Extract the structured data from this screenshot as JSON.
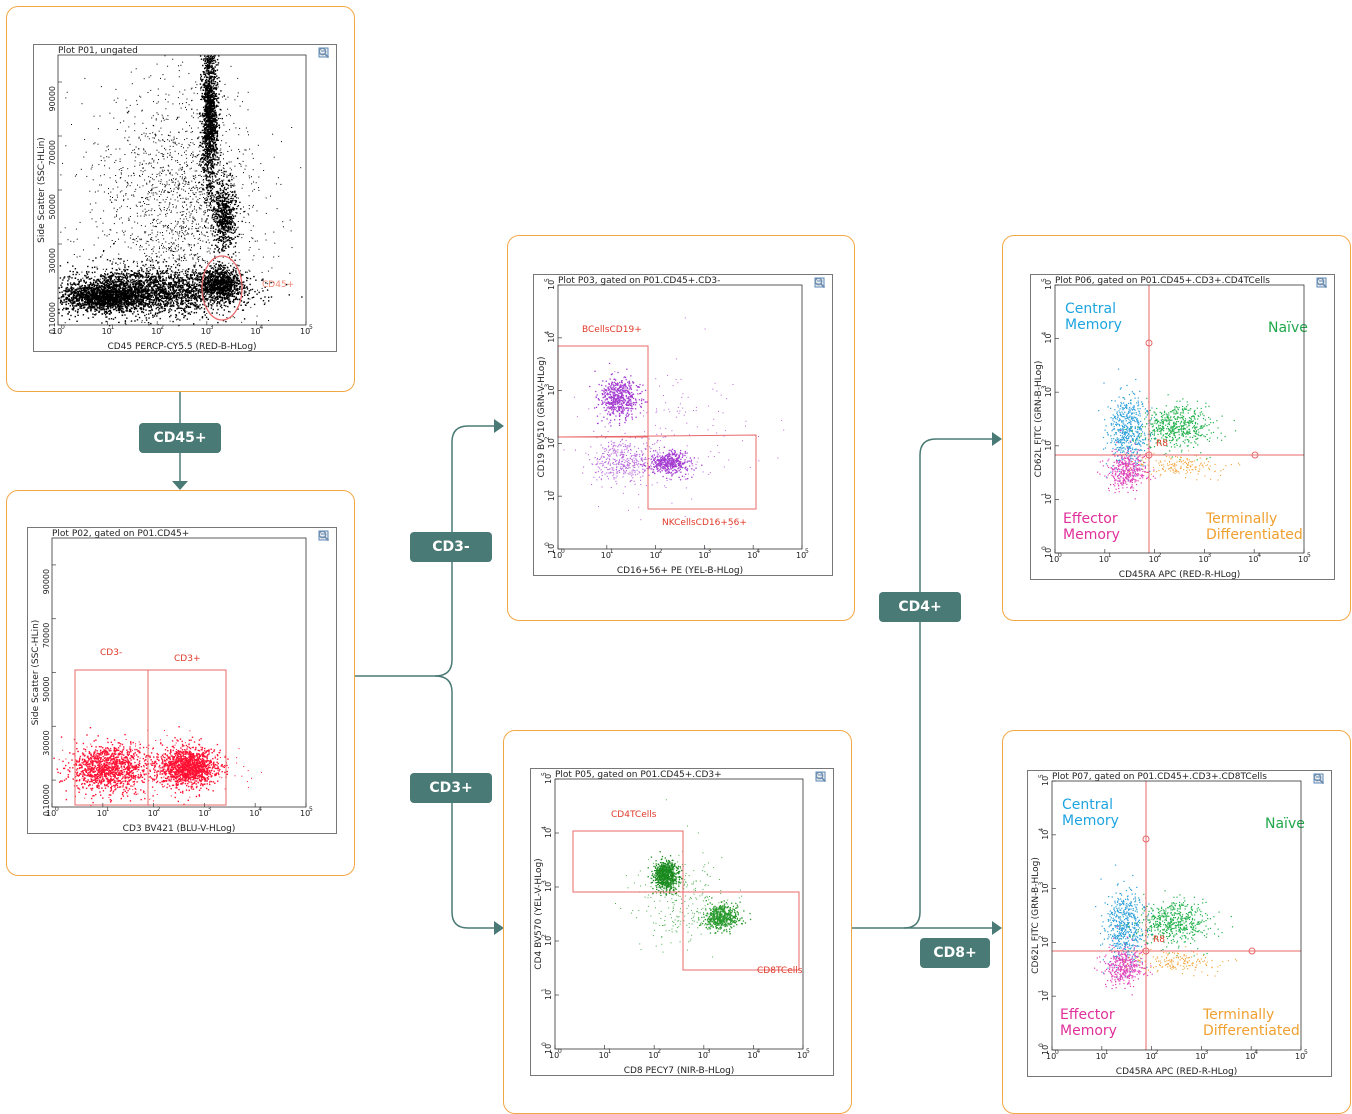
{
  "colors": {
    "card_border": "#f2a745",
    "connector": "#4a7a75",
    "gate": "#e8686a",
    "gate_text": "#e03a2a"
  },
  "badges": {
    "cd45": "CD45+",
    "cd3neg": "CD3-",
    "cd3pos": "CD3+",
    "cd4": "CD4+",
    "cd8": "CD8+"
  },
  "toolbar_icons": [
    "zoom-icon",
    "copy-icon",
    "stats-icon",
    "report-icon",
    "save-icon",
    "search-icon"
  ],
  "p01": {
    "title": "Plot P01, ungated",
    "xlabel": "CD45 PERCP-CY5.5 (RED-B-HLog)",
    "ylabel": "Side Scatter (SSC-HLin)",
    "gate": "CD45+",
    "yticks": [
      "0",
      "10000",
      "30000",
      "50000",
      "70000",
      "90000"
    ]
  },
  "p02": {
    "title": "Plot P02, gated on P01.CD45+",
    "xlabel": "CD3  BV421 (BLU-V-HLog)",
    "ylabel": "Side Scatter (SSC-HLin)",
    "gate_neg": "CD3-",
    "gate_pos": "CD3+",
    "yticks": [
      "0",
      "10000",
      "30000",
      "50000",
      "70000",
      "90000"
    ]
  },
  "p03": {
    "title": "Plot P03, gated on P01.CD45+.CD3-",
    "xlabel": "CD16+56+ PE (YEL-B-HLog)",
    "ylabel": "CD19 BV510 (GRN-V-HLog)",
    "gate_b": "BCellsCD19+",
    "gate_nk": "NKCellsCD16+56+"
  },
  "p05": {
    "title": "Plot P05, gated on P01.CD45+.CD3+",
    "xlabel": "CD8 PECY7 (NIR-B-HLog)",
    "ylabel": "CD4 BV570 (YEL-V-HLog)",
    "gate_cd4": "CD4TCells",
    "gate_cd8": "CD8TCells"
  },
  "p06": {
    "title": "Plot P06, gated on P01.CD45+.CD3+.CD4TCells",
    "xlabel": "CD45RA APC (RED-R-HLog)",
    "ylabel": "CD62L FITC (GRN-B-HLog)",
    "quad": "R8",
    "central": "Central\nMemory",
    "naive": "Naïve",
    "effector": "Effector\nMemory",
    "terminal": "Terminally\nDifferentiated"
  },
  "p07": {
    "title": "Plot P07, gated on P01.CD45+.CD3+.CD8TCells",
    "xlabel": "CD45RA APC (RED-R-HLog)",
    "ylabel": "CD62L FITC (GRN-B-HLog)",
    "quad": "R8",
    "central": "Central\nMemory",
    "naive": "Naïve",
    "effector": "Effector\nMemory",
    "terminal": "Terminally\nDifferentiated"
  },
  "log_ticks": [
    "10",
    "10",
    "10",
    "10",
    "10",
    "10"
  ],
  "log_exps": [
    "0",
    "1",
    "2",
    "3",
    "4",
    "5"
  ]
}
